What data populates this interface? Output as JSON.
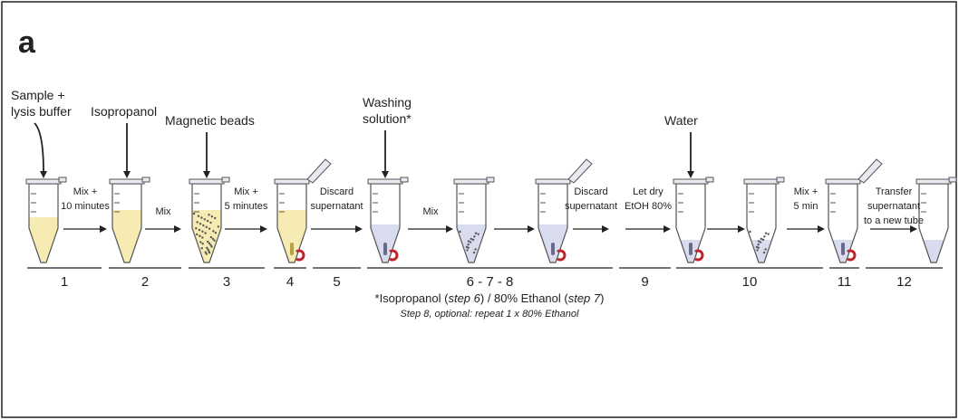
{
  "figure_label": "a",
  "reagents": [
    {
      "lines": [
        "Sample +",
        "lysis buffer"
      ]
    },
    {
      "lines": [
        "Isopropanol"
      ]
    },
    {
      "lines": [
        "Magnetic beads"
      ]
    },
    {
      "lines": [
        "Washing",
        "solution*"
      ]
    },
    {
      "lines": [
        "Water"
      ]
    }
  ],
  "arrow_labels": [
    {
      "lines": [
        "Mix +",
        "10 minutes"
      ]
    },
    {
      "lines": [
        "Mix"
      ]
    },
    {
      "lines": [
        "Mix +",
        "5 minutes"
      ]
    },
    {
      "lines": [
        "Discard",
        "supernatant"
      ]
    },
    {
      "lines": [
        "Mix"
      ]
    },
    {
      "lines": [
        "Discard",
        "supernatant"
      ]
    },
    {
      "lines": [
        "Let dry",
        "EtOH 80%"
      ]
    },
    {
      "lines": [
        "Mix +",
        "5 min"
      ]
    },
    {
      "lines": [
        "Transfer",
        "supernatant",
        "to a new tube"
      ]
    }
  ],
  "steps": [
    "1",
    "2",
    "3",
    "4",
    "5",
    "6 - 7 - 8",
    "9",
    "10",
    "11",
    "12"
  ],
  "footnote": {
    "parts": [
      "*Isopropanol (",
      "step 6",
      ") / 80% Ethanol (",
      "step 7",
      ")"
    ],
    "note": "Step 8, optional: repeat 1 x 80% Ethanol"
  }
}
